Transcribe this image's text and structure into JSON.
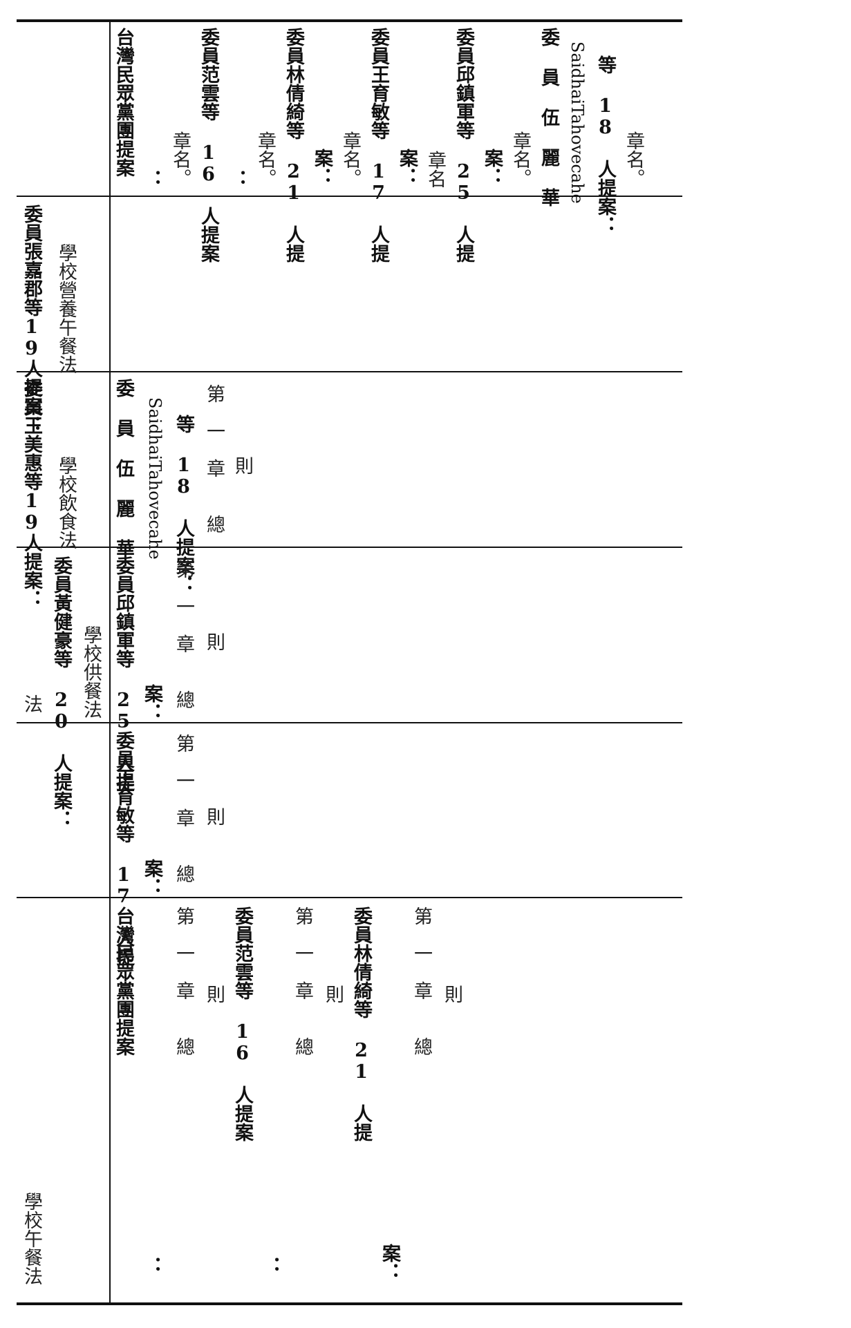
{
  "rows": [
    {
      "header": [
        "",
        "",
        ""
      ],
      "body": [
        "台灣民眾黨團提案",
        "：",
        "章名。",
        "委員范雲等 16 人提案",
        "：",
        "章名。",
        "委員林倩綺等 21 人提",
        "案：",
        "章名。",
        "委員王育敏等 17 人提",
        "案：",
        "章名",
        "委員邱鎮軍等 25 人提",
        "案：",
        "章名。",
        "委　員　伍　麗　華",
        "SaidhaiTahovecahe",
        "等 18 人提案：",
        "章名。"
      ]
    },
    {
      "header": [
        "委員張嘉郡等19人提案：",
        "學校營養午餐法"
      ],
      "body": []
    },
    {
      "header": [
        "委員王美惠等19人提案：",
        "學校飲食法"
      ],
      "body": [
        "委　員　伍　麗　華",
        "SaidhaiTahovecahe",
        "等 18 人提案：",
        "第　一　章　　總",
        "則"
      ]
    },
    {
      "header": [
        "法",
        "委員黃健豪等 20 人提案：",
        "學校供餐法"
      ],
      "body": [
        "委員邱鎮軍等 25 人提",
        "案：",
        "第　一　章　　總",
        "則"
      ]
    },
    {
      "header": [],
      "body": [
        "委員王育敏等 17 人提",
        "案：",
        "第　一　章　　總",
        "則"
      ]
    },
    {
      "header": [
        "學校午餐法"
      ],
      "body": [
        "台灣民眾黨團提案",
        "：",
        "第　一　章　　總",
        "則",
        "委員范雲等 16 人提案",
        "：",
        "第　一　章　　總",
        "則",
        "委員林倩綺等 21 人提",
        "案：",
        "第　一　章　　總",
        "則"
      ]
    }
  ]
}
